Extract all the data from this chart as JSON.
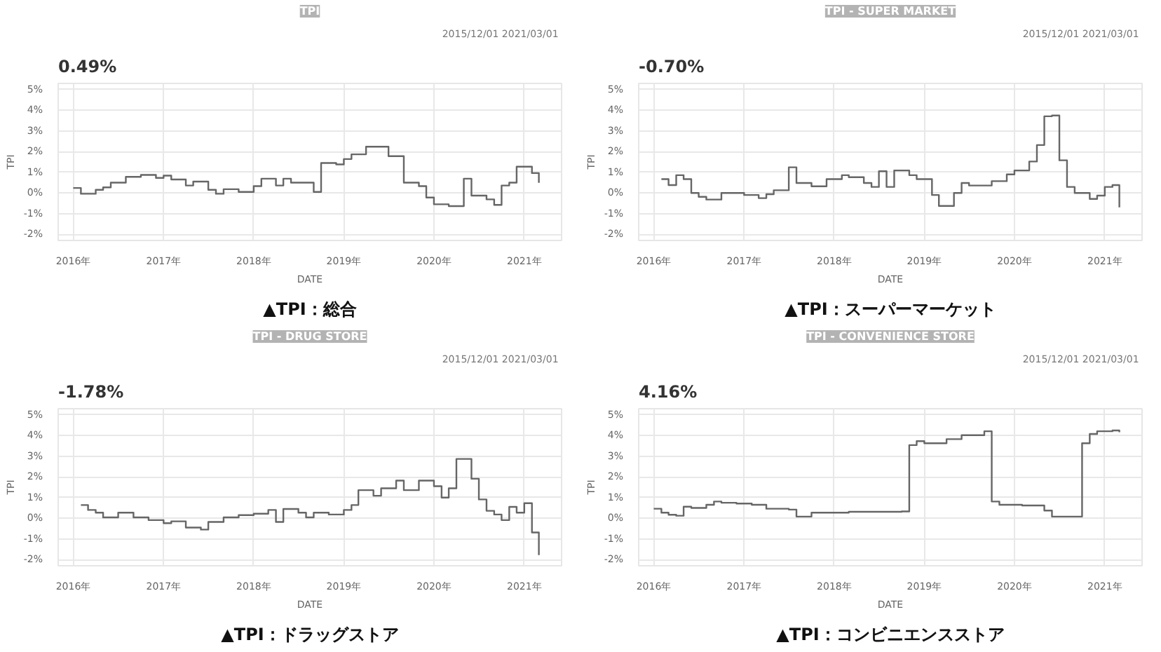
{
  "chart_data": [
    {
      "type": "step",
      "title": "TPI",
      "subtitle": "0.49%",
      "xlabel": "DATE",
      "ylabel": "TPI",
      "annotations": [
        "▲TPI：総合",
        "2015/12/01  2021/03/01"
      ],
      "color": "#666666",
      "grid": true,
      "x": [
        "2016-01",
        "2016-02",
        "2016-04",
        "2016-05",
        "2016-06",
        "2016-08",
        "2016-10",
        "2016-12",
        "2017-01",
        "2017-02",
        "2017-04",
        "2017-05",
        "2017-07",
        "2017-08",
        "2017-09",
        "2017-11",
        "2018-01",
        "2018-02",
        "2018-04",
        "2018-05",
        "2018-06",
        "2018-09",
        "2018-10",
        "2018-12",
        "2019-01",
        "2019-02",
        "2019-04",
        "2019-07",
        "2019-09",
        "2019-11",
        "2019-12",
        "2020-01",
        "2020-03",
        "2020-05",
        "2020-06",
        "2020-08",
        "2020-09",
        "2020-10",
        "2020-11",
        "2020-12",
        "2021-02",
        "2021-03"
      ],
      "values": [
        0.24,
        -0.04,
        0.15,
        0.27,
        0.5,
        0.78,
        0.87,
        0.73,
        0.84,
        0.65,
        0.36,
        0.55,
        0.15,
        -0.04,
        0.18,
        0.05,
        0.33,
        0.69,
        0.36,
        0.69,
        0.5,
        0.05,
        1.45,
        1.38,
        1.64,
        1.87,
        2.24,
        1.78,
        0.5,
        0.33,
        -0.22,
        -0.55,
        -0.64,
        0.69,
        -0.13,
        -0.31,
        -0.58,
        0.36,
        0.5,
        1.27,
        0.96,
        0.49
      ],
      "xlim": [
        "2015-11",
        "2021-06"
      ],
      "ylim": [
        -2.3,
        5.3
      ],
      "xticks": [
        {
          "value": "2016-01",
          "label": "2016年"
        },
        {
          "value": "2017-01",
          "label": "2017年"
        },
        {
          "value": "2018-01",
          "label": "2018年"
        },
        {
          "value": "2019-01",
          "label": "2019年"
        },
        {
          "value": "2020-01",
          "label": "2020年"
        },
        {
          "value": "2021-01",
          "label": "2021年"
        }
      ],
      "yticks": [
        {
          "value": -2,
          "label": "-2%"
        },
        {
          "value": -1,
          "label": "-1%"
        },
        {
          "value": 0,
          "label": "0%"
        },
        {
          "value": 1,
          "label": "1%"
        },
        {
          "value": 2,
          "label": "2%"
        },
        {
          "value": 3,
          "label": "3%"
        },
        {
          "value": 4,
          "label": "4%"
        },
        {
          "value": 5,
          "label": "5%"
        }
      ]
    },
    {
      "type": "step",
      "title": "TPI - SUPER MARKET",
      "subtitle": "-0.70%",
      "xlabel": "DATE",
      "ylabel": "TPI",
      "annotations": [
        "▲TPI：スーパーマーケット",
        "2015/12/01  2021/03/01"
      ],
      "color": "#666666",
      "grid": true,
      "x": [
        "2016-02",
        "2016-03",
        "2016-04",
        "2016-05",
        "2016-06",
        "2016-07",
        "2016-08",
        "2016-10",
        "2017-01",
        "2017-03",
        "2017-04",
        "2017-05",
        "2017-07",
        "2017-08",
        "2017-10",
        "2017-12",
        "2018-02",
        "2018-03",
        "2018-05",
        "2018-06",
        "2018-07",
        "2018-08",
        "2018-09",
        "2018-11",
        "2018-12",
        "2019-02",
        "2019-03",
        "2019-05",
        "2019-06",
        "2019-07",
        "2019-10",
        "2019-12",
        "2020-01",
        "2020-03",
        "2020-04",
        "2020-05",
        "2020-06",
        "2020-07",
        "2020-08",
        "2020-09",
        "2020-11",
        "2020-12",
        "2021-01",
        "2021-02",
        "2021-03"
      ],
      "values": [
        0.67,
        0.38,
        0.86,
        0.67,
        0,
        -0.19,
        -0.32,
        0,
        -0.1,
        -0.25,
        -0.06,
        0.13,
        1.24,
        0.48,
        0.32,
        0.67,
        0.86,
        0.76,
        0.48,
        0.29,
        1.05,
        0.29,
        1.09,
        0.86,
        0.67,
        -0.1,
        -0.63,
        0,
        0.48,
        0.36,
        0.57,
        0.9,
        1.09,
        1.52,
        2.32,
        3.71,
        3.75,
        1.58,
        0.29,
        0,
        -0.29,
        -0.13,
        0.29,
        0.38,
        -0.7
      ],
      "xlim": [
        "2015-11",
        "2021-06"
      ],
      "ylim": [
        -2.3,
        5.3
      ],
      "xticks": [
        {
          "value": "2016-01",
          "label": "2016年"
        },
        {
          "value": "2017-01",
          "label": "2017年"
        },
        {
          "value": "2018-01",
          "label": "2018年"
        },
        {
          "value": "2019-01",
          "label": "2019年"
        },
        {
          "value": "2020-01",
          "label": "2020年"
        },
        {
          "value": "2021-01",
          "label": "2021年"
        }
      ],
      "yticks": [
        {
          "value": -2,
          "label": "-2%"
        },
        {
          "value": -1,
          "label": "-1%"
        },
        {
          "value": 0,
          "label": "0%"
        },
        {
          "value": 1,
          "label": "1%"
        },
        {
          "value": 2,
          "label": "2%"
        },
        {
          "value": 3,
          "label": "3%"
        },
        {
          "value": 4,
          "label": "4%"
        },
        {
          "value": 5,
          "label": "5%"
        }
      ]
    },
    {
      "type": "step",
      "title": "TPI - DRUG STORE",
      "subtitle": "-1.78%",
      "xlabel": "DATE",
      "ylabel": "TPI",
      "annotations": [
        "▲TPI：ドラッグストア",
        "2015/12/01  2021/03/01"
      ],
      "color": "#666666",
      "grid": true,
      "x": [
        "2016-02",
        "2016-03",
        "2016-04",
        "2016-05",
        "2016-07",
        "2016-09",
        "2016-11",
        "2017-01",
        "2017-02",
        "2017-04",
        "2017-06",
        "2017-07",
        "2017-09",
        "2017-11",
        "2018-01",
        "2018-03",
        "2018-04",
        "2018-05",
        "2018-07",
        "2018-08",
        "2018-09",
        "2018-11",
        "2019-01",
        "2019-02",
        "2019-03",
        "2019-05",
        "2019-06",
        "2019-08",
        "2019-09",
        "2019-11",
        "2020-01",
        "2020-02",
        "2020-03",
        "2020-04",
        "2020-06",
        "2020-07",
        "2020-08",
        "2020-09",
        "2020-10",
        "2020-11",
        "2020-12",
        "2021-01",
        "2021-02",
        "2021-03"
      ],
      "values": [
        0.64,
        0.4,
        0.27,
        0.04,
        0.27,
        0.04,
        -0.09,
        -0.24,
        -0.15,
        -0.45,
        -0.55,
        -0.18,
        0.04,
        0.15,
        0.22,
        0.4,
        -0.18,
        0.45,
        0.27,
        0.04,
        0.27,
        0.18,
        0.4,
        0.64,
        1.36,
        1.09,
        1.45,
        1.82,
        1.36,
        1.82,
        1.55,
        1.0,
        1.45,
        2.87,
        1.91,
        0.91,
        0.36,
        0.18,
        -0.09,
        0.55,
        0.27,
        0.73,
        -0.69,
        -1.78
      ],
      "xlim": [
        "2015-11",
        "2021-06"
      ],
      "ylim": [
        -2.3,
        5.3
      ],
      "xticks": [
        {
          "value": "2016-01",
          "label": "2016年"
        },
        {
          "value": "2017-01",
          "label": "2017年"
        },
        {
          "value": "2018-01",
          "label": "2018年"
        },
        {
          "value": "2019-01",
          "label": "2019年"
        },
        {
          "value": "2020-01",
          "label": "2020年"
        },
        {
          "value": "2021-01",
          "label": "2021年"
        }
      ],
      "yticks": [
        {
          "value": -2,
          "label": "-2%"
        },
        {
          "value": -1,
          "label": "-1%"
        },
        {
          "value": 0,
          "label": "0%"
        },
        {
          "value": 1,
          "label": "1%"
        },
        {
          "value": 2,
          "label": "2%"
        },
        {
          "value": 3,
          "label": "3%"
        },
        {
          "value": 4,
          "label": "4%"
        },
        {
          "value": 5,
          "label": "5%"
        }
      ]
    },
    {
      "type": "step",
      "title": "TPI - CONVENIENCE STORE",
      "subtitle": "4.16%",
      "xlabel": "DATE",
      "ylabel": "TPI",
      "annotations": [
        "▲TPI：コンビニエンスストア",
        "2015/12/01  2021/03/01"
      ],
      "color": "#666666",
      "grid": true,
      "x": [
        "2016-01",
        "2016-02",
        "2016-03",
        "2016-04",
        "2016-05",
        "2016-06",
        "2016-08",
        "2016-09",
        "2016-10",
        "2016-12",
        "2017-02",
        "2017-04",
        "2017-07",
        "2017-08",
        "2017-10",
        "2018-03",
        "2018-10",
        "2018-11",
        "2018-12",
        "2019-01",
        "2019-04",
        "2019-06",
        "2019-09",
        "2019-10",
        "2019-11",
        "2020-02",
        "2020-05",
        "2020-06",
        "2020-09",
        "2020-10",
        "2020-11",
        "2020-12",
        "2021-02",
        "2021-03"
      ],
      "values": [
        0.46,
        0.27,
        0.17,
        0.12,
        0.56,
        0.5,
        0.65,
        0.81,
        0.75,
        0.71,
        0.65,
        0.46,
        0.42,
        0.08,
        0.27,
        0.31,
        0.33,
        3.54,
        3.73,
        3.63,
        3.83,
        4.02,
        4.21,
        0.81,
        0.65,
        0.62,
        0.37,
        0.08,
        0.08,
        3.63,
        4.08,
        4.21,
        4.25,
        4.16
      ],
      "xlim": [
        "2015-11",
        "2021-06"
      ],
      "ylim": [
        -2.3,
        5.3
      ],
      "xticks": [
        {
          "value": "2016-01",
          "label": "2016年"
        },
        {
          "value": "2017-01",
          "label": "2017年"
        },
        {
          "value": "2018-01",
          "label": "2018年"
        },
        {
          "value": "2019-01",
          "label": "2019年"
        },
        {
          "value": "2020-01",
          "label": "2020年"
        },
        {
          "value": "2021-01",
          "label": "2021年"
        }
      ],
      "yticks": [
        {
          "value": -2,
          "label": "-2%"
        },
        {
          "value": -1,
          "label": "-1%"
        },
        {
          "value": 0,
          "label": "0%"
        },
        {
          "value": 1,
          "label": "1%"
        },
        {
          "value": 2,
          "label": "2%"
        },
        {
          "value": 3,
          "label": "3%"
        },
        {
          "value": 4,
          "label": "4%"
        },
        {
          "value": 5,
          "label": "5%"
        }
      ]
    }
  ]
}
